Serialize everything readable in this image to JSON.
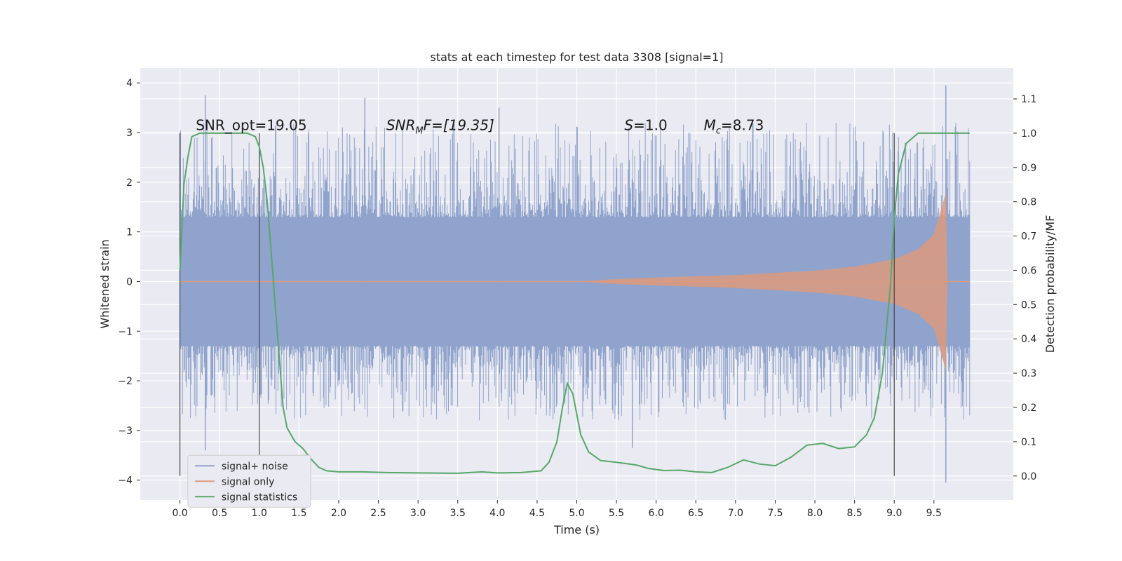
{
  "chart_data": {
    "type": "line",
    "title": "stats at each timestep for test data 3308 [signal=1]",
    "xlabel": "Time (s)",
    "ylabel": "Whitened strain",
    "y2label": "Detection probability/MF",
    "xlim": [
      -0.5,
      10.5
    ],
    "ylim": [
      -4.4,
      4.3
    ],
    "y2lim": [
      -0.07,
      1.19
    ],
    "x_ticks": [
      0.0,
      0.5,
      1.0,
      1.5,
      2.0,
      2.5,
      3.0,
      3.5,
      4.0,
      4.5,
      5.0,
      5.5,
      6.0,
      6.5,
      7.0,
      7.5,
      8.0,
      8.5,
      9.0,
      9.5
    ],
    "x_tick_labels": [
      "0.0",
      "0.5",
      "1.0",
      "1.5",
      "2.0",
      "2.5",
      "3.0",
      "3.5",
      "4.0",
      "4.5",
      "5.0",
      "5.5",
      "6.0",
      "6.5",
      "7.0",
      "7.5",
      "8.0",
      "8.5",
      "9.0",
      "9.5"
    ],
    "y_ticks": [
      -4,
      -3,
      -2,
      -1,
      0,
      1,
      2,
      3,
      4
    ],
    "y_tick_labels": [
      "−4",
      "−3",
      "−2",
      "−1",
      "0",
      "1",
      "2",
      "3",
      "4"
    ],
    "y2_ticks": [
      0.0,
      0.1,
      0.2,
      0.3,
      0.4,
      0.5,
      0.6,
      0.7,
      0.8,
      0.9,
      1.0,
      1.1
    ],
    "y2_tick_labels": [
      "0.0",
      "0.1",
      "0.2",
      "0.3",
      "0.4",
      "0.5",
      "0.6",
      "0.7",
      "0.8",
      "0.9",
      "1.0",
      "1.1"
    ],
    "grid": true,
    "legend_position": "lower-left",
    "annotations": {
      "snr_opt": "SNR_opt=19.05",
      "snr_mf_main": "SNR",
      "snr_mf_sub": "M",
      "snr_mf_rest": "F=[19.35]",
      "s_main": "S",
      "s_rest": "=1.0",
      "mc_main": "M",
      "mc_sub": "c",
      "mc_rest": "=8.73"
    },
    "vertical_markers_x": [
      0.0,
      1.0,
      9.0
    ],
    "series": [
      {
        "name": "signal+ noise",
        "color": "#8fa3cc",
        "style": "dense noise band",
        "x_range": [
          0.0,
          9.95
        ],
        "typical_amplitude": 1.2,
        "peaks": [
          {
            "x": 0.32,
            "y": 3.75
          },
          {
            "x": 2.33,
            "y": 3.7
          },
          {
            "x": 4.02,
            "y": 3.5
          },
          {
            "x": 9.65,
            "y": 3.95
          },
          {
            "x": 0.32,
            "y": -3.4
          },
          {
            "x": 9.65,
            "y": -4.05
          },
          {
            "x": 5.7,
            "y": -3.35
          }
        ]
      },
      {
        "name": "signal only",
        "color": "#dd9a7e",
        "style": "chirp",
        "x_range": [
          0.0,
          9.95
        ],
        "merger_x": 9.65,
        "envelope": [
          [
            0.0,
            0.0
          ],
          [
            5.0,
            0.0
          ],
          [
            5.5,
            0.05
          ],
          [
            6.0,
            0.08
          ],
          [
            7.0,
            0.13
          ],
          [
            8.0,
            0.22
          ],
          [
            8.5,
            0.3
          ],
          [
            9.0,
            0.45
          ],
          [
            9.3,
            0.65
          ],
          [
            9.5,
            0.95
          ],
          [
            9.6,
            1.5
          ],
          [
            9.65,
            1.8
          ],
          [
            9.67,
            0.0
          ],
          [
            9.95,
            0.0
          ]
        ]
      },
      {
        "name": "signal statistics",
        "color": "#55a868",
        "style": "line",
        "axis": "right",
        "points": [
          [
            0.0,
            0.6
          ],
          [
            0.05,
            0.85
          ],
          [
            0.1,
            0.93
          ],
          [
            0.15,
            0.99
          ],
          [
            0.25,
            1.0
          ],
          [
            0.6,
            1.0
          ],
          [
            0.85,
            1.0
          ],
          [
            0.95,
            0.99
          ],
          [
            1.0,
            0.96
          ],
          [
            1.05,
            0.9
          ],
          [
            1.1,
            0.8
          ],
          [
            1.15,
            0.65
          ],
          [
            1.2,
            0.5
          ],
          [
            1.25,
            0.35
          ],
          [
            1.3,
            0.2
          ],
          [
            1.35,
            0.14
          ],
          [
            1.45,
            0.1
          ],
          [
            1.55,
            0.08
          ],
          [
            1.65,
            0.05
          ],
          [
            1.75,
            0.025
          ],
          [
            1.85,
            0.015
          ],
          [
            2.0,
            0.012
          ],
          [
            2.3,
            0.012
          ],
          [
            2.6,
            0.01
          ],
          [
            3.0,
            0.009
          ],
          [
            3.5,
            0.008
          ],
          [
            3.8,
            0.012
          ],
          [
            4.0,
            0.009
          ],
          [
            4.3,
            0.01
          ],
          [
            4.55,
            0.015
          ],
          [
            4.65,
            0.04
          ],
          [
            4.75,
            0.1
          ],
          [
            4.82,
            0.2
          ],
          [
            4.88,
            0.27
          ],
          [
            4.95,
            0.24
          ],
          [
            5.05,
            0.12
          ],
          [
            5.15,
            0.07
          ],
          [
            5.3,
            0.045
          ],
          [
            5.5,
            0.04
          ],
          [
            5.75,
            0.032
          ],
          [
            5.9,
            0.022
          ],
          [
            6.1,
            0.016
          ],
          [
            6.3,
            0.017
          ],
          [
            6.5,
            0.012
          ],
          [
            6.7,
            0.01
          ],
          [
            6.9,
            0.025
          ],
          [
            7.1,
            0.047
          ],
          [
            7.3,
            0.035
          ],
          [
            7.5,
            0.03
          ],
          [
            7.7,
            0.055
          ],
          [
            7.9,
            0.09
          ],
          [
            8.1,
            0.095
          ],
          [
            8.3,
            0.08
          ],
          [
            8.5,
            0.085
          ],
          [
            8.65,
            0.12
          ],
          [
            8.75,
            0.17
          ],
          [
            8.85,
            0.3
          ],
          [
            8.95,
            0.55
          ],
          [
            9.0,
            0.75
          ],
          [
            9.05,
            0.88
          ],
          [
            9.15,
            0.97
          ],
          [
            9.3,
            1.0
          ],
          [
            9.5,
            1.0
          ],
          [
            9.95,
            1.0
          ]
        ]
      }
    ]
  }
}
